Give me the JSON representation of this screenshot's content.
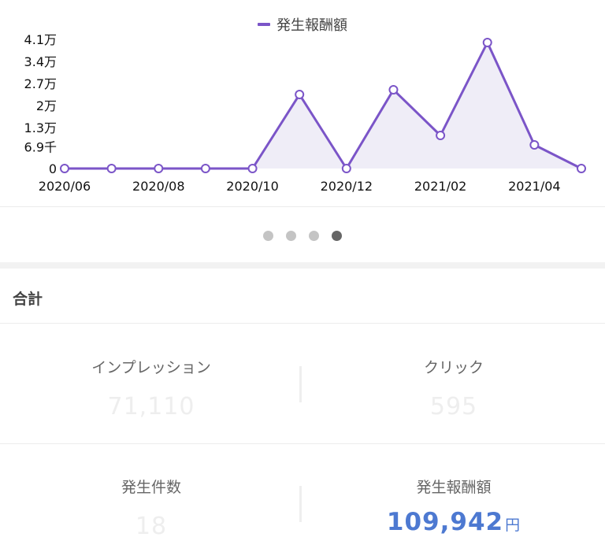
{
  "chart_data": {
    "type": "area",
    "legend": "発生報酬額",
    "legend_position": "top-center",
    "series_color": "#7b55c8",
    "fill_color": "#efedf7",
    "x": [
      "2020/06",
      "2020/07",
      "2020/08",
      "2020/09",
      "2020/10",
      "2020/11",
      "2020/12",
      "2021/01",
      "2021/02",
      "2021/03",
      "2021/04",
      "2021/05"
    ],
    "values": [
      0,
      0,
      0,
      0,
      0,
      23500,
      0,
      25000,
      10500,
      40000,
      7500,
      0
    ],
    "x_tick_labels": [
      "2020/06",
      "2020/08",
      "2020/10",
      "2020/12",
      "2021/02",
      "2021/04"
    ],
    "y_ticks": [
      0,
      6900,
      13000,
      20000,
      27000,
      34000,
      41000
    ],
    "y_tick_labels": [
      "0",
      "6.9千",
      "1.3万",
      "2万",
      "2.7万",
      "3.4万",
      "4.1万"
    ],
    "ylim": [
      0,
      41000
    ],
    "grid": false
  },
  "pagination": {
    "count": 4,
    "active": 3
  },
  "summary": {
    "title": "合計",
    "impressions": {
      "label": "インプレッション",
      "value": "71,110"
    },
    "clicks": {
      "label": "クリック",
      "value": "595"
    },
    "conversions": {
      "label": "発生件数",
      "value": "18"
    },
    "reward": {
      "label": "発生報酬額",
      "value": "109,942",
      "unit": "円",
      "color": "#4d79d1"
    }
  }
}
